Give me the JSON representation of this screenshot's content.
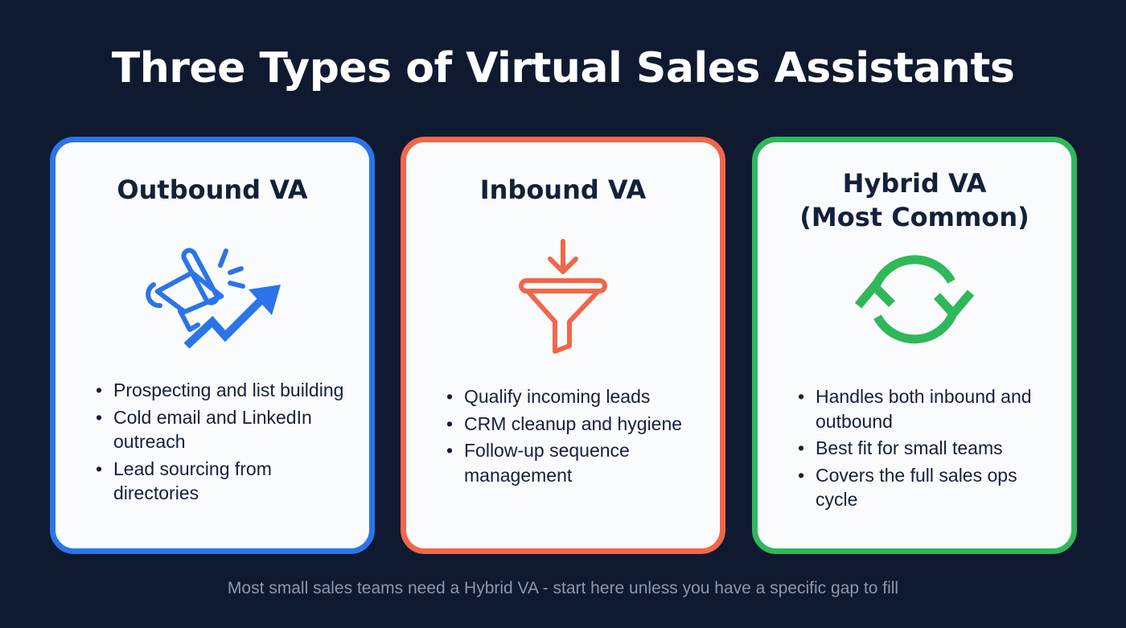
{
  "title": "Three Types of Virtual Sales Assistants",
  "colors": {
    "background": "#0f1a31",
    "outbound": "#2b74e9",
    "inbound": "#f2664b",
    "hybrid": "#2fb85a"
  },
  "cards": [
    {
      "title": "Outbound VA",
      "subtitle": "",
      "icon": "megaphone-trend-arrow-icon",
      "bullets": [
        "Prospecting and list building",
        "Cold email and LinkedIn outreach",
        "Lead sourcing from directories"
      ]
    },
    {
      "title": "Inbound VA",
      "subtitle": "",
      "icon": "funnel-arrow-icon",
      "bullets": [
        "Qualify incoming leads",
        "CRM cleanup and hygiene",
        "Follow-up sequence management"
      ]
    },
    {
      "title": "Hybrid VA",
      "subtitle": "(Most Common)",
      "icon": "cycle-arrows-icon",
      "bullets": [
        "Handles both inbound and outbound",
        "Best fit for small teams",
        "Covers the full sales ops cycle"
      ]
    }
  ],
  "footer": "Most small sales teams need a Hybrid VA - start here unless you have a specific gap to fill"
}
